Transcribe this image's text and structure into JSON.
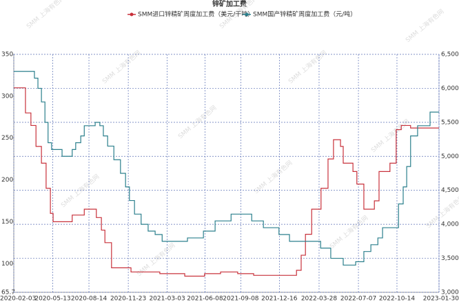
{
  "chart_data": {
    "type": "line",
    "title": "锌矿加工费",
    "watermark": "SMM 上海有色网",
    "xlim": [
      "2020-02-03",
      "2023-01-30"
    ],
    "xticks": [
      "2020-02-03",
      "2020-05-13",
      "2020-08-14",
      "2020-11-23",
      "2021-03-03",
      "2021-06-08",
      "2021-09-08",
      "2021-12-16",
      "2022-03-28",
      "2022-07-07",
      "2022-10-14",
      "2023-01-30"
    ],
    "ylim": [
      65.7,
      350
    ],
    "yticks": [
      65.7,
      100,
      150,
      200,
      250,
      300,
      350
    ],
    "y2lim": [
      3000,
      6500
    ],
    "y2ticks": [
      {
        "value": 3000,
        "label": "3,000"
      },
      {
        "value": 3500,
        "label": "3,500"
      },
      {
        "value": 4000,
        "label": "4,000"
      },
      {
        "value": 4500,
        "label": "4,500"
      },
      {
        "value": 5000,
        "label": "5,000"
      },
      {
        "value": 5500,
        "label": "5,500"
      },
      {
        "value": 6000,
        "label": "6,000"
      },
      {
        "value": 6500,
        "label": "6,500"
      }
    ],
    "grid": true,
    "step": true,
    "legend": "top",
    "series": [
      {
        "name": "SMM进口锌精矿周度加工费（美元/干吨）",
        "color": "#c8303a",
        "axis": "y",
        "x": [
          "2020-02-03",
          "2020-03-04",
          "2020-03-18",
          "2020-03-31",
          "2020-04-14",
          "2020-04-26",
          "2020-05-07",
          "2020-05-14",
          "2020-07-02",
          "2020-08-02",
          "2020-09-02",
          "2020-09-15",
          "2020-09-24",
          "2020-10-11",
          "2020-11-30",
          "2021-02-12",
          "2021-04-17",
          "2021-06-07",
          "2021-07-18",
          "2021-08-31",
          "2021-10-11",
          "2022-01-29",
          "2022-02-10",
          "2022-02-21",
          "2022-03-09",
          "2022-04-02",
          "2022-04-20",
          "2022-05-04",
          "2022-05-22",
          "2022-05-29",
          "2022-06-23",
          "2022-07-03",
          "2022-07-21",
          "2022-08-17",
          "2022-08-29",
          "2022-09-26",
          "2022-10-12",
          "2022-10-25",
          "2022-11-18",
          "2023-01-30"
        ],
        "values": [
          310,
          280,
          265,
          240,
          220,
          190,
          160,
          150,
          158,
          165,
          155,
          140,
          125,
          95,
          90,
          88,
          85,
          88,
          90,
          88,
          86,
          92,
          110,
          135,
          165,
          190,
          225,
          248,
          240,
          220,
          210,
          195,
          165,
          175,
          210,
          220,
          260,
          265,
          262,
          262
        ]
      },
      {
        "name": "SMM国产锌精矿周度加工费（元/吨）",
        "color": "#2a7f8c",
        "axis": "y2",
        "x": [
          "2020-02-03",
          "2020-03-27",
          "2020-04-05",
          "2020-04-14",
          "2020-04-23",
          "2020-05-01",
          "2020-05-10",
          "2020-06-06",
          "2020-07-02",
          "2020-07-11",
          "2020-07-24",
          "2020-08-02",
          "2020-08-30",
          "2020-09-11",
          "2020-09-20",
          "2020-10-01",
          "2020-10-17",
          "2020-11-03",
          "2020-11-16",
          "2020-11-26",
          "2020-12-09",
          "2020-12-26",
          "2021-01-13",
          "2021-01-31",
          "2021-02-18",
          "2021-04-24",
          "2021-06-04",
          "2021-07-04",
          "2021-08-14",
          "2021-10-06",
          "2021-11-05",
          "2021-12-15",
          "2022-01-11",
          "2022-04-01",
          "2022-04-27",
          "2022-05-29",
          "2022-06-30",
          "2022-07-21",
          "2022-08-08",
          "2022-08-26",
          "2022-09-07",
          "2022-10-18",
          "2022-10-30",
          "2022-11-08",
          "2022-11-18",
          "2022-12-06",
          "2023-01-07",
          "2023-01-30"
        ],
        "values": [
          6250,
          6150,
          6000,
          5800,
          5500,
          5200,
          5100,
          5000,
          5100,
          5200,
          5300,
          5450,
          5500,
          5450,
          5300,
          5150,
          4950,
          4750,
          4550,
          4350,
          4150,
          4000,
          3900,
          3850,
          3750,
          3800,
          3900,
          4050,
          4150,
          4050,
          3950,
          3850,
          3750,
          3650,
          3500,
          3400,
          3450,
          3600,
          3700,
          3800,
          3950,
          4300,
          4550,
          4850,
          5300,
          5450,
          5650,
          5650
        ]
      }
    ]
  }
}
